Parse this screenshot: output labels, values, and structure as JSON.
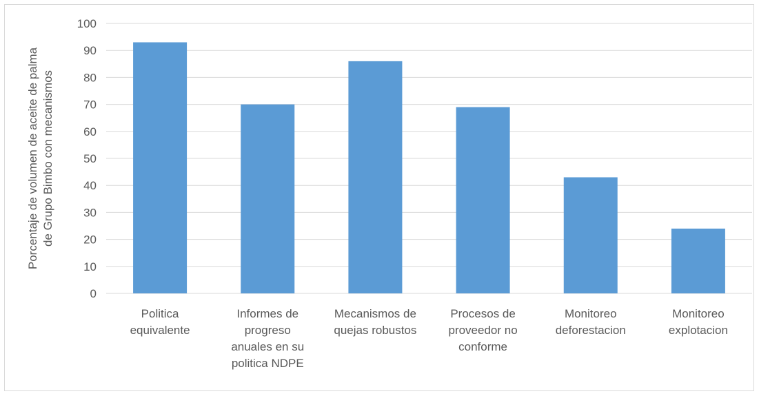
{
  "chart_data": {
    "type": "bar",
    "categories": [
      [
        "Politica",
        "equivalente"
      ],
      [
        "Informes de",
        "progreso",
        "anuales en su",
        "politica NDPE"
      ],
      [
        "Mecanismos de",
        "quejas robustos"
      ],
      [
        "Procesos de",
        "proveedor no",
        "conforme"
      ],
      [
        "Monitoreo",
        "deforestacion"
      ],
      [
        "Monitoreo",
        "explotacion"
      ]
    ],
    "values": [
      93,
      70,
      86,
      69,
      43,
      24
    ],
    "title": "",
    "xlabel": "",
    "ylabel": [
      "Porcentaje de volumen de aceite de palma",
      "de Grupo Bimbo con mecanismos"
    ],
    "ylim": [
      0,
      100
    ],
    "yticks": [
      0,
      10,
      20,
      30,
      40,
      50,
      60,
      70,
      80,
      90,
      100
    ],
    "grid": true,
    "legend": "none",
    "colors": {
      "bar": "#5b9bd5",
      "grid": "#d9d9d9",
      "text": "#595959"
    }
  }
}
